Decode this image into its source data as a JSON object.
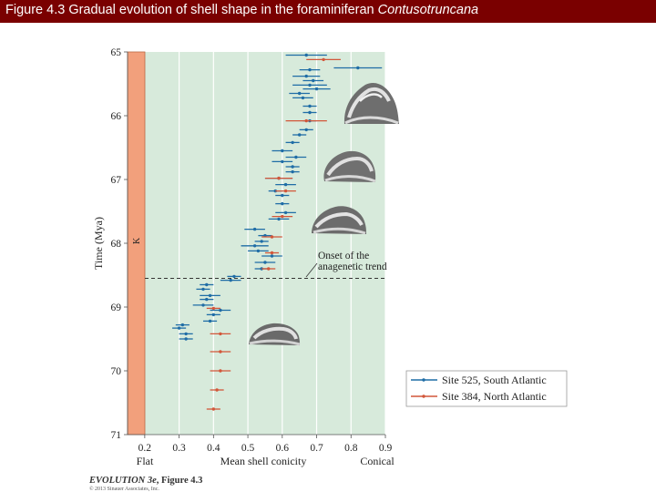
{
  "slide": {
    "title_prefix": "Figure 4.3  Gradual evolution of shell shape in the foraminiferan ",
    "title_italic": "Contusotruncana"
  },
  "colors": {
    "title_bar": "#7a0000",
    "plot_bg": "#d7eadb",
    "k_band": "#f2a07c",
    "site525": "#1f6da6",
    "site384": "#d2573a"
  },
  "annotation": {
    "line1": "Onset of the",
    "line2": "anagenetic trend",
    "boundary_marker": "K"
  },
  "credit": {
    "book_prefix": "EVOLUTION 3e",
    "book_suffix": ", Figure 4.3",
    "copyright": "© 2013 Sinauer Associates, Inc."
  },
  "chart_data": {
    "type": "scatter",
    "title": "Gradual evolution of shell shape in the foraminiferan Contusotruncana",
    "xlabel": "Mean shell conicity",
    "ylabel": "Time (Mya)",
    "xlim": [
      0.15,
      0.9
    ],
    "ylim": [
      65,
      71
    ],
    "y_inverted": true,
    "xticks": [
      "0.2",
      "0.3",
      "0.4",
      "0.5",
      "0.6",
      "0.7",
      "0.8",
      "0.9"
    ],
    "xtick_values": [
      0.2,
      0.3,
      0.4,
      0.5,
      0.6,
      0.7,
      0.8,
      0.9
    ],
    "yticks": [
      "65",
      "66",
      "67",
      "68",
      "69",
      "70",
      "71"
    ],
    "ytick_values": [
      65,
      66,
      67,
      68,
      69,
      70,
      71
    ],
    "x_end_labels": {
      "left": "Flat",
      "right": "Conical"
    },
    "grid": "vertical",
    "boundary_band": {
      "label": "K",
      "x_from": 0.15,
      "x_to": 0.2
    },
    "onset_time": 68.55,
    "legend": {
      "position": "bottom-right"
    },
    "series": [
      {
        "name": "Site 525, South Atlantic",
        "color": "#1f6da6",
        "points": [
          {
            "t": 65.05,
            "x": 0.67,
            "err": 0.06
          },
          {
            "t": 65.25,
            "x": 0.82,
            "err": 0.07
          },
          {
            "t": 65.28,
            "x": 0.68,
            "err": 0.03
          },
          {
            "t": 65.38,
            "x": 0.67,
            "err": 0.04
          },
          {
            "t": 65.45,
            "x": 0.69,
            "err": 0.03
          },
          {
            "t": 65.52,
            "x": 0.68,
            "err": 0.05
          },
          {
            "t": 65.58,
            "x": 0.7,
            "err": 0.04
          },
          {
            "t": 65.65,
            "x": 0.65,
            "err": 0.03
          },
          {
            "t": 65.72,
            "x": 0.66,
            "err": 0.03
          },
          {
            "t": 65.85,
            "x": 0.68,
            "err": 0.02
          },
          {
            "t": 65.95,
            "x": 0.68,
            "err": 0.02
          },
          {
            "t": 66.08,
            "x": 0.68,
            "err": 0.02
          },
          {
            "t": 66.22,
            "x": 0.67,
            "err": 0.02
          },
          {
            "t": 66.3,
            "x": 0.65,
            "err": 0.02
          },
          {
            "t": 66.42,
            "x": 0.63,
            "err": 0.02
          },
          {
            "t": 66.55,
            "x": 0.6,
            "err": 0.03
          },
          {
            "t": 66.65,
            "x": 0.64,
            "err": 0.03
          },
          {
            "t": 66.72,
            "x": 0.6,
            "err": 0.03
          },
          {
            "t": 66.8,
            "x": 0.63,
            "err": 0.02
          },
          {
            "t": 66.88,
            "x": 0.63,
            "err": 0.02
          },
          {
            "t": 66.98,
            "x": 0.59,
            "err": 0.04
          },
          {
            "t": 67.08,
            "x": 0.61,
            "err": 0.03
          },
          {
            "t": 67.18,
            "x": 0.58,
            "err": 0.02
          },
          {
            "t": 67.25,
            "x": 0.6,
            "err": 0.02
          },
          {
            "t": 67.38,
            "x": 0.6,
            "err": 0.02
          },
          {
            "t": 67.52,
            "x": 0.61,
            "err": 0.03
          },
          {
            "t": 67.62,
            "x": 0.59,
            "err": 0.03
          },
          {
            "t": 67.78,
            "x": 0.52,
            "err": 0.03
          },
          {
            "t": 67.88,
            "x": 0.55,
            "err": 0.02
          },
          {
            "t": 67.97,
            "x": 0.54,
            "err": 0.02
          },
          {
            "t": 68.04,
            "x": 0.52,
            "err": 0.04
          },
          {
            "t": 68.12,
            "x": 0.53,
            "err": 0.03
          },
          {
            "t": 68.2,
            "x": 0.57,
            "err": 0.03
          },
          {
            "t": 68.3,
            "x": 0.55,
            "err": 0.03
          },
          {
            "t": 68.4,
            "x": 0.54,
            "err": 0.02
          },
          {
            "t": 68.52,
            "x": 0.46,
            "err": 0.02
          },
          {
            "t": 68.58,
            "x": 0.45,
            "err": 0.03
          },
          {
            "t": 68.65,
            "x": 0.38,
            "err": 0.02
          },
          {
            "t": 68.72,
            "x": 0.37,
            "err": 0.02
          },
          {
            "t": 68.82,
            "x": 0.39,
            "err": 0.03
          },
          {
            "t": 68.88,
            "x": 0.38,
            "err": 0.02
          },
          {
            "t": 68.97,
            "x": 0.37,
            "err": 0.03
          },
          {
            "t": 69.05,
            "x": 0.42,
            "err": 0.03
          },
          {
            "t": 69.12,
            "x": 0.4,
            "err": 0.02
          },
          {
            "t": 69.22,
            "x": 0.39,
            "err": 0.02
          },
          {
            "t": 69.28,
            "x": 0.31,
            "err": 0.02
          },
          {
            "t": 69.33,
            "x": 0.3,
            "err": 0.02
          },
          {
            "t": 69.42,
            "x": 0.32,
            "err": 0.02
          },
          {
            "t": 69.5,
            "x": 0.32,
            "err": 0.02
          }
        ]
      },
      {
        "name": "Site 384, North Atlantic",
        "color": "#d2573a",
        "points": [
          {
            "t": 65.12,
            "x": 0.72,
            "err": 0.05
          },
          {
            "t": 66.08,
            "x": 0.67,
            "err": 0.06
          },
          {
            "t": 66.98,
            "x": 0.59,
            "err": 0.04
          },
          {
            "t": 67.18,
            "x": 0.61,
            "err": 0.03
          },
          {
            "t": 67.58,
            "x": 0.6,
            "err": 0.03
          },
          {
            "t": 67.9,
            "x": 0.57,
            "err": 0.03
          },
          {
            "t": 68.15,
            "x": 0.57,
            "err": 0.02
          },
          {
            "t": 68.4,
            "x": 0.56,
            "err": 0.02
          },
          {
            "t": 69.02,
            "x": 0.4,
            "err": 0.02
          },
          {
            "t": 69.42,
            "x": 0.42,
            "err": 0.03
          },
          {
            "t": 69.7,
            "x": 0.42,
            "err": 0.03
          },
          {
            "t": 70.0,
            "x": 0.42,
            "err": 0.03
          },
          {
            "t": 70.3,
            "x": 0.41,
            "err": 0.02
          },
          {
            "t": 70.6,
            "x": 0.4,
            "err": 0.02
          }
        ]
      }
    ]
  }
}
